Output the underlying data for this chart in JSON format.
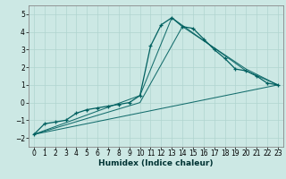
{
  "title": "",
  "xlabel": "Humidex (Indice chaleur)",
  "ylabel": "",
  "xlim": [
    -0.5,
    23.5
  ],
  "ylim": [
    -2.5,
    5.5
  ],
  "yticks": [
    -2,
    -1,
    0,
    1,
    2,
    3,
    4,
    5
  ],
  "xticks": [
    0,
    1,
    2,
    3,
    4,
    5,
    6,
    7,
    8,
    9,
    10,
    11,
    12,
    13,
    14,
    15,
    16,
    17,
    18,
    19,
    20,
    21,
    22,
    23
  ],
  "xtick_labels": [
    "0",
    "1",
    "2",
    "3",
    "4",
    "5",
    "6",
    "7",
    "8",
    "9",
    "10",
    "11",
    "12",
    "13",
    "14",
    "15",
    "16",
    "17",
    "18",
    "19",
    "20",
    "21",
    "22",
    "23"
  ],
  "bg_color": "#cce8e4",
  "grid_color": "#b0d4cf",
  "line_color": "#006060",
  "lines": [
    {
      "x": [
        0,
        1,
        2,
        3,
        4,
        5,
        6,
        7,
        8,
        9,
        10,
        11,
        12,
        13,
        14,
        15,
        16,
        17,
        18,
        19,
        20,
        21,
        22,
        23
      ],
      "y": [
        -1.8,
        -1.2,
        -1.1,
        -1.0,
        -0.6,
        -0.4,
        -0.3,
        -0.2,
        -0.1,
        0.0,
        0.4,
        3.2,
        4.4,
        4.8,
        4.3,
        4.2,
        3.6,
        3.0,
        2.5,
        1.9,
        1.8,
        1.5,
        1.1,
        1.0
      ],
      "marker": true
    },
    {
      "x": [
        0,
        10,
        13,
        20,
        23
      ],
      "y": [
        -1.8,
        0.4,
        4.8,
        1.8,
        1.0
      ],
      "marker": false
    },
    {
      "x": [
        0,
        10,
        14,
        20,
        23
      ],
      "y": [
        -1.8,
        0.0,
        4.3,
        1.9,
        1.0
      ],
      "marker": false
    },
    {
      "x": [
        0,
        23
      ],
      "y": [
        -1.8,
        1.0
      ],
      "marker": false
    }
  ]
}
